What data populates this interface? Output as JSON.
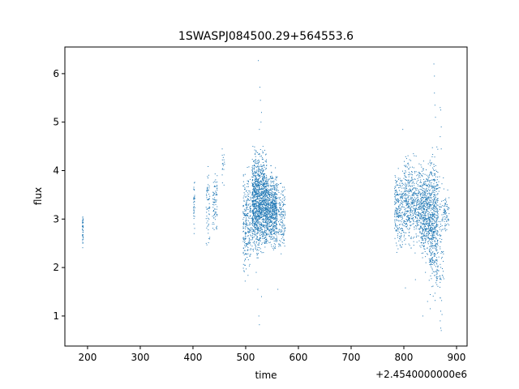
{
  "chart_data": {
    "type": "scatter",
    "title": "1SWASPJ084500.29+564553.6",
    "xlabel": "time",
    "ylabel": "flux",
    "x_offset_label": "+2.4540000000e6",
    "xlim": [
      157,
      920
    ],
    "ylim": [
      0.38,
      6.55
    ],
    "x_ticks": [
      200,
      300,
      400,
      500,
      600,
      700,
      800,
      900
    ],
    "y_ticks": [
      1,
      2,
      3,
      4,
      5,
      6
    ],
    "grid": false,
    "legend": "none",
    "marker_color": "#1f77b4",
    "series": [
      {
        "segments": [
          {
            "x": [
              190,
              192
            ],
            "y": [
              2.35,
              3.15
            ],
            "count": 40
          },
          {
            "x": [
              401,
              404
            ],
            "y": [
              2.7,
              3.95
            ],
            "count": 35
          },
          {
            "x": [
              425,
              432
            ],
            "y": [
              2.4,
              4.25
            ],
            "count": 60
          },
          {
            "x": [
              437,
              446
            ],
            "y": [
              2.45,
              4.1
            ],
            "count": 80
          },
          {
            "x": [
              455,
              460
            ],
            "y": [
              3.7,
              4.55
            ],
            "count": 18
          },
          {
            "x": [
              495,
              510
            ],
            "y": [
              1.75,
              4.1
            ],
            "count": 260
          },
          {
            "x": [
              512,
              540
            ],
            "y": [
              2.2,
              4.5
            ],
            "count": 1300
          },
          {
            "x": [
              540,
              560
            ],
            "y": [
              2.3,
              4.1
            ],
            "count": 650
          },
          {
            "x": [
              562,
              575
            ],
            "y": [
              2.2,
              3.9
            ],
            "count": 140
          },
          {
            "x": [
              782,
              800
            ],
            "y": [
              2.25,
              4.15
            ],
            "count": 240
          },
          {
            "x": [
              800,
              832
            ],
            "y": [
              2.3,
              4.4
            ],
            "count": 520
          },
          {
            "x": [
              832,
              848
            ],
            "y": [
              2.1,
              4.2
            ],
            "count": 420
          },
          {
            "x": [
              848,
              865
            ],
            "y": [
              1.3,
              4.6
            ],
            "count": 560
          },
          {
            "x": [
              866,
              876
            ],
            "y": [
              0.7,
              4.5
            ],
            "count": 80
          },
          {
            "x": [
              876,
              886
            ],
            "y": [
              2.6,
              3.6
            ],
            "count": 60
          }
        ],
        "outliers": [
          {
            "x": 524,
            "y": 6.27
          },
          {
            "x": 527,
            "y": 5.72
          },
          {
            "x": 528,
            "y": 5.45
          },
          {
            "x": 530,
            "y": 5.2
          },
          {
            "x": 529,
            "y": 5.0
          },
          {
            "x": 526,
            "y": 4.85
          },
          {
            "x": 525,
            "y": 1.0
          },
          {
            "x": 526,
            "y": 0.82
          },
          {
            "x": 530,
            "y": 1.4
          },
          {
            "x": 523,
            "y": 1.55
          },
          {
            "x": 520,
            "y": 1.9
          },
          {
            "x": 499,
            "y": 1.72
          },
          {
            "x": 561,
            "y": 1.55
          },
          {
            "x": 498,
            "y": 2.05
          },
          {
            "x": 798,
            "y": 4.85
          },
          {
            "x": 803,
            "y": 1.58
          },
          {
            "x": 822,
            "y": 1.75
          },
          {
            "x": 841,
            "y": 1.9
          },
          {
            "x": 845,
            "y": 1.3
          },
          {
            "x": 850,
            "y": 1.15
          },
          {
            "x": 836,
            "y": 1.0
          },
          {
            "x": 857,
            "y": 6.2
          },
          {
            "x": 858,
            "y": 5.95
          },
          {
            "x": 858,
            "y": 5.6
          },
          {
            "x": 859,
            "y": 5.35
          },
          {
            "x": 860,
            "y": 5.1
          },
          {
            "x": 869,
            "y": 5.3
          },
          {
            "x": 870,
            "y": 5.25
          },
          {
            "x": 871,
            "y": 4.9
          },
          {
            "x": 869,
            "y": 4.7
          },
          {
            "x": 870,
            "y": 0.75
          },
          {
            "x": 871,
            "y": 0.7
          },
          {
            "x": 869,
            "y": 0.9
          },
          {
            "x": 870,
            "y": 1.1
          }
        ]
      }
    ]
  }
}
